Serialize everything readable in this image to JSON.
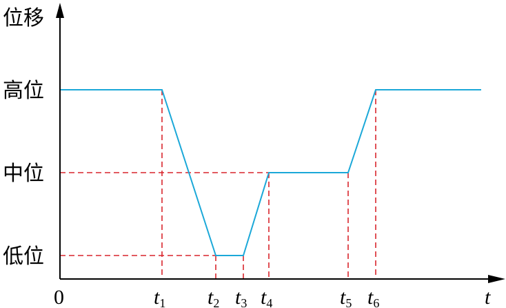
{
  "y_axis_label": "位移",
  "x_axis_label": "t",
  "origin_label": "0",
  "levels": [
    {
      "key": "high",
      "label": "高位"
    },
    {
      "key": "mid",
      "label": "中位"
    },
    {
      "key": "low",
      "label": "低位"
    }
  ],
  "time_marks": [
    {
      "base": "t",
      "sub": "1"
    },
    {
      "base": "t",
      "sub": "2"
    },
    {
      "base": "t",
      "sub": "3"
    },
    {
      "base": "t",
      "sub": "4"
    },
    {
      "base": "t",
      "sub": "5"
    },
    {
      "base": "t",
      "sub": "6"
    }
  ],
  "profile": [
    "high",
    "high",
    "low",
    "low",
    "mid",
    "mid",
    "high",
    "high"
  ],
  "colors": {
    "curve": "#1ba8d8",
    "guide": "#d9242b",
    "axis": "#000000"
  }
}
